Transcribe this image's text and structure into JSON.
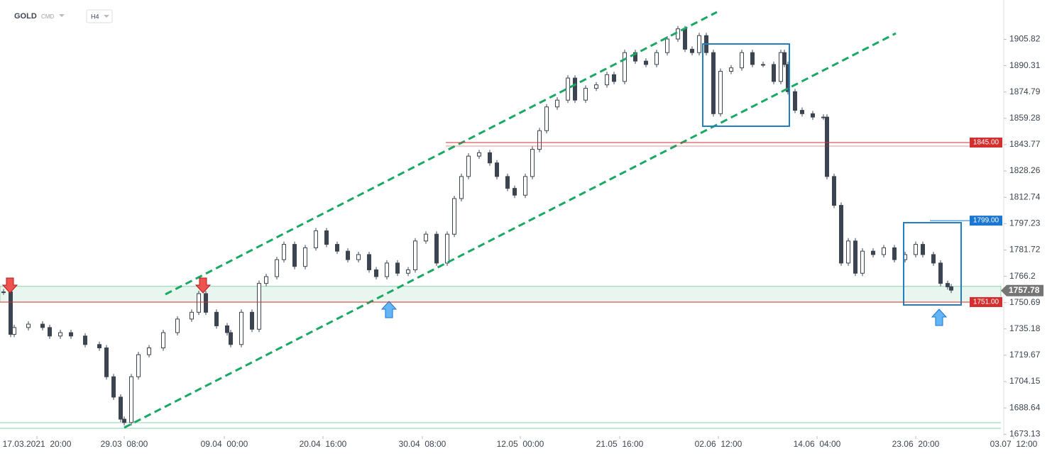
{
  "header": {
    "symbol": "GOLD",
    "market": "CMD",
    "interval": "H4"
  },
  "chart_data": {
    "type": "candlestick",
    "x": [
      1,
      3,
      4,
      8,
      12,
      14,
      17,
      20,
      24,
      28,
      30,
      32,
      34,
      35,
      37,
      39,
      42,
      46,
      50,
      54,
      56,
      58,
      61,
      64,
      65,
      68,
      71,
      73,
      75,
      78,
      80,
      83,
      86,
      89,
      92,
      95,
      98,
      101,
      104,
      106,
      109,
      112,
      115,
      117,
      120,
      123,
      126,
      128,
      130,
      132,
      135,
      138,
      140,
      143,
      145,
      148,
      150,
      152,
      154,
      157,
      160,
      162,
      165,
      168,
      171,
      173,
      176,
      179,
      182,
      185,
      188,
      191,
      193,
      195,
      197,
      199,
      201,
      203,
      206,
      209,
      212,
      215,
      218,
      220,
      221,
      222,
      224,
      226,
      229,
      232,
      233,
      235,
      237,
      239,
      241,
      243,
      246,
      249,
      252,
      255,
      258,
      260,
      263,
      265,
      267,
      268
    ],
    "values": [
      1757,
      1732,
      1736,
      1738,
      1736,
      1731,
      1733,
      1731,
      1726,
      1724,
      1707,
      1695,
      1682,
      1680,
      1707,
      1720,
      1724,
      1733,
      1741,
      1745,
      1756,
      1745,
      1737,
      1733,
      1726,
      1745,
      1735,
      1762,
      1766,
      1776,
      1785,
      1772,
      1783,
      1793,
      1785,
      1781,
      1776,
      1779,
      1770,
      1766,
      1774,
      1768,
      1770,
      1787,
      1791,
      1774,
      1791,
      1812,
      1825,
      1837,
      1839,
      1833,
      1825,
      1818,
      1814,
      1825,
      1841,
      1852,
      1866,
      1870,
      1883,
      1870,
      1877,
      1879,
      1885,
      1881,
      1898,
      1893,
      1891,
      1898,
      1906,
      1912,
      1900,
      1898,
      1908,
      1898,
      1862,
      1887,
      1889,
      1898,
      1891,
      1891,
      1881,
      1898,
      1891,
      1875,
      1864,
      1862,
      1860,
      1860,
      1825,
      1808,
      1774,
      1787,
      1768,
      1781,
      1779,
      1783,
      1776,
      1779,
      1785,
      1779,
      1774,
      1762,
      1760,
      1758
    ],
    "xlim": [
      0,
      287.2
    ],
    "xticks": [
      {
        "value": 10.4,
        "label": "17.03.2021  20:00"
      },
      {
        "value": 35,
        "label": "29.03  08:00"
      },
      {
        "value": 63.2,
        "label": "09.04  00:00"
      },
      {
        "value": 91,
        "label": "20.04  16:00"
      },
      {
        "value": 119,
        "label": "30.04  08:00"
      },
      {
        "value": 146.6,
        "label": "12.05  00:00"
      },
      {
        "value": 174.6,
        "label": "21.05  16:00"
      },
      {
        "value": 202.4,
        "label": "02.06  12:00"
      },
      {
        "value": 230.2,
        "label": "14.06  04:00"
      },
      {
        "value": 258,
        "label": "23.06  20:00"
      },
      {
        "value": 285.6,
        "label": "03.07  12:00"
      }
    ],
    "ylim": [
      1672,
      1929
    ],
    "yticks": [
      1673.13,
      1688.64,
      1704.15,
      1719.67,
      1735.18,
      1750.69,
      1766.2,
      1781.72,
      1797.23,
      1812.74,
      1828.26,
      1843.77,
      1859.28,
      1874.79,
      1890.31,
      1905.82
    ],
    "levels": [
      {
        "value": 1845,
        "label": "1845.00",
        "color": "#d32f2f"
      },
      {
        "value": 1799,
        "label": "1799.00",
        "color": "#1976d2"
      },
      {
        "value": 1751,
        "label": "1751.00",
        "color": "#d32f2f"
      }
    ],
    "current_price": 1757.78,
    "up_color": "#ffffff",
    "down_color": "#3b4450"
  }
}
